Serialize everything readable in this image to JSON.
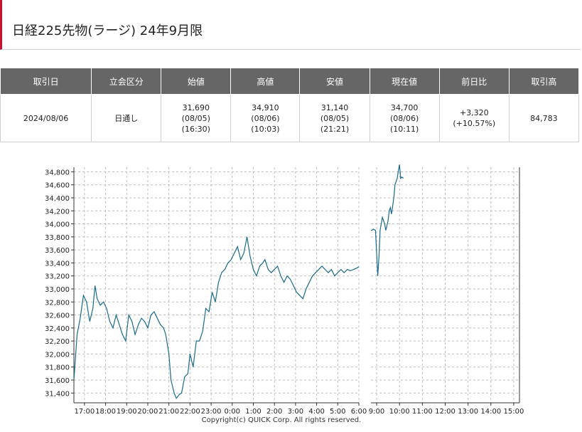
{
  "page": {
    "title": "日経225先物(ラージ) 24年9月限"
  },
  "quote_table": {
    "headers": [
      "取引日",
      "立会区分",
      "始値",
      "高値",
      "安値",
      "現在値",
      "前日比",
      "取引高"
    ],
    "row": {
      "date": "2024/08/06",
      "session": "日通し",
      "open": {
        "price": "31,690",
        "date": "(08/05)",
        "time": "(16:30)"
      },
      "high": {
        "price": "34,910",
        "date": "(08/06)",
        "time": "(10:03)"
      },
      "low": {
        "price": "31,140",
        "date": "(08/05)",
        "time": "(21:21)"
      },
      "current": {
        "price": "34,700",
        "date": "(08/06)",
        "time": "(10:11)"
      },
      "change": {
        "value": "+3,320",
        "percent": "(+10.57%)"
      },
      "volume": "84,783"
    }
  },
  "chart_data": {
    "type": "line",
    "line_color": "#1a6a8a",
    "grid": true,
    "ylim": [
      31250,
      34870
    ],
    "y_ticks": [
      "31,400",
      "31,600",
      "31,800",
      "32,000",
      "32,200",
      "32,400",
      "32,600",
      "32,800",
      "33,000",
      "33,200",
      "33,400",
      "33,600",
      "33,800",
      "34,000",
      "34,200",
      "34,400",
      "34,600",
      "34,800"
    ],
    "x_ticks": {
      "night": [
        "17:00",
        "18:00",
        "19:00",
        "20:00",
        "21:00",
        "22:00",
        "23:00",
        "0:00",
        "1:00",
        "2:00",
        "3:00",
        "4:00",
        "5:00",
        "6:00"
      ],
      "day": [
        "9:00",
        "10:00",
        "11:00",
        "12:00",
        "13:00",
        "14:00",
        "15:00"
      ]
    },
    "series": [
      {
        "session": "night",
        "x_hours_from_16_30": [
          0,
          0.15,
          0.3,
          0.45,
          0.6,
          0.75,
          0.9,
          1.0,
          1.1,
          1.25,
          1.4,
          1.55,
          1.7,
          1.85,
          2.0,
          2.15,
          2.3,
          2.45,
          2.6,
          2.75,
          2.9,
          3.05,
          3.2,
          3.35,
          3.5,
          3.65,
          3.8,
          3.95,
          4.1,
          4.25,
          4.35,
          4.5,
          4.6,
          4.75,
          4.85,
          5.0,
          5.1,
          5.25,
          5.4,
          5.5,
          5.65,
          5.8,
          5.95,
          6.1,
          6.25,
          6.4,
          6.55,
          6.7,
          6.85,
          7.0,
          7.15,
          7.3,
          7.45,
          7.6,
          7.75,
          7.9,
          8.05,
          8.2,
          8.35,
          8.5,
          8.65,
          8.8,
          8.95,
          9.05,
          9.2,
          9.35,
          9.5,
          9.65,
          9.8,
          9.95,
          10.1,
          10.25,
          10.4,
          10.55,
          10.7,
          10.85,
          11.0,
          11.15,
          11.3,
          11.45,
          11.6,
          11.75,
          11.9,
          12.05,
          12.2,
          12.35,
          12.5,
          12.65,
          12.8,
          12.95,
          13.1,
          13.25,
          13.4,
          13.5
        ],
        "values": [
          31600,
          32300,
          32550,
          32900,
          32800,
          32500,
          32700,
          33050,
          32850,
          32750,
          32800,
          32700,
          32500,
          32400,
          32600,
          32450,
          32300,
          32200,
          32600,
          32500,
          32300,
          32450,
          32550,
          32500,
          32400,
          32600,
          32650,
          32550,
          32450,
          32400,
          32300,
          32000,
          31600,
          31400,
          31320,
          31380,
          31400,
          31650,
          31700,
          32000,
          31800,
          32200,
          32200,
          32350,
          32700,
          32650,
          32950,
          32800,
          33100,
          33250,
          33300,
          33400,
          33450,
          33550,
          33650,
          33450,
          33550,
          33800,
          33500,
          33300,
          33200,
          33350,
          33400,
          33450,
          33300,
          33250,
          33300,
          33350,
          33200,
          33100,
          33200,
          33150,
          33050,
          32950,
          32900,
          32850,
          33000,
          33100,
          33200,
          33250,
          33300,
          33350,
          33300,
          33250,
          33300,
          33200,
          33250,
          33300,
          33250,
          33300,
          33280,
          33300,
          33320,
          33340
        ]
      },
      {
        "session": "day",
        "x_hours_from_8_45": [
          0,
          0.05,
          0.1,
          0.2,
          0.3,
          0.35,
          0.4,
          0.5,
          0.55,
          0.6,
          0.65,
          0.75,
          0.8,
          0.85,
          0.9,
          1.0,
          1.05,
          1.1,
          1.15,
          1.2,
          1.25,
          1.3,
          1.35,
          1.42
        ],
        "values": [
          33900,
          33900,
          33920,
          33900,
          33200,
          33500,
          33900,
          34100,
          34050,
          34000,
          33900,
          34050,
          34200,
          34250,
          34150,
          34400,
          34600,
          34650,
          34700,
          34820,
          34910,
          34700,
          34720,
          34700
        ]
      }
    ]
  },
  "copyright": "Copyright(c) QUICK Corp. All rights reserved."
}
